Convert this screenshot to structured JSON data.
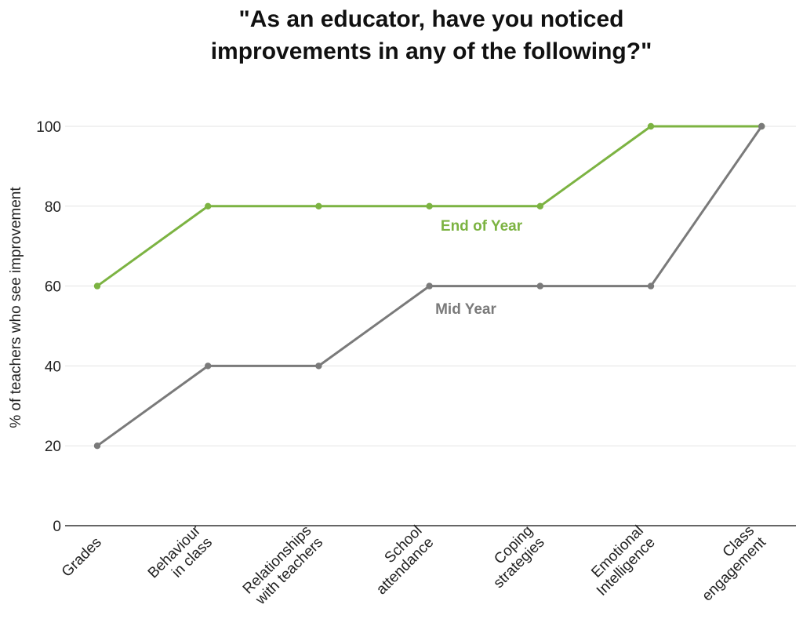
{
  "chart_data": {
    "type": "line",
    "title_lines": [
      "\"As an educator, have you noticed",
      "improvements in any of the following?\""
    ],
    "ylabel": "% of teachers who see improvement",
    "xlabel": "",
    "ylim": [
      0,
      100
    ],
    "yticks": [
      0,
      20,
      40,
      60,
      80,
      100
    ],
    "grid": true,
    "categories": [
      [
        "Grades"
      ],
      [
        "Behaviour",
        "in class"
      ],
      [
        "Relationships",
        "with teachers"
      ],
      [
        "School",
        "attendance"
      ],
      [
        "Coping",
        "strategies"
      ],
      [
        "Emotional",
        "Intelligence"
      ],
      [
        "Class",
        "engagement"
      ]
    ],
    "series": [
      {
        "name": "End of Year",
        "color": "#7cb342",
        "values": [
          60,
          80,
          80,
          80,
          80,
          100,
          100
        ]
      },
      {
        "name": "Mid Year",
        "color": "#7a7a7a",
        "values": [
          20,
          40,
          40,
          60,
          60,
          60,
          100
        ]
      }
    ]
  }
}
